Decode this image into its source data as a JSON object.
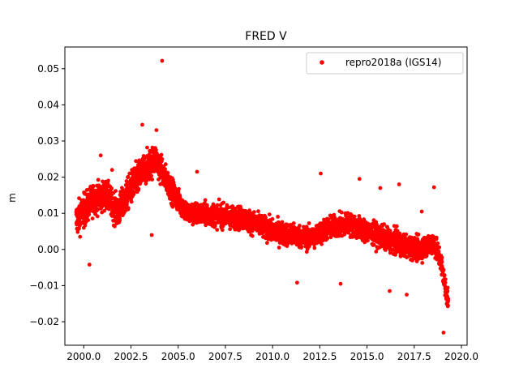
{
  "chart_data": {
    "type": "scatter",
    "title": "FRED V",
    "xlabel": "",
    "ylabel": "m",
    "xlim": [
      1999.0,
      2020.3
    ],
    "ylim": [
      -0.0265,
      0.056
    ],
    "xticks": [
      2000.0,
      2002.5,
      2005.0,
      2007.5,
      2010.0,
      2012.5,
      2015.0,
      2017.5,
      2020.0
    ],
    "xtick_labels": [
      "2000.0",
      "2002.5",
      "2005.0",
      "2007.5",
      "2010.0",
      "2012.5",
      "2015.0",
      "2017.5",
      "2020.0"
    ],
    "yticks": [
      -0.02,
      -0.01,
      0.0,
      0.01,
      0.02,
      0.03,
      0.04,
      0.05
    ],
    "ytick_labels": [
      "−0.02",
      "−0.01",
      "0.00",
      "0.01",
      "0.02",
      "0.03",
      "0.04",
      "0.05"
    ],
    "legend": {
      "placement": "top-right",
      "entries": [
        "repro2018a (IGS14)"
      ]
    },
    "grid": false,
    "series": [
      {
        "name": "repro2018a (IGS14)",
        "color": "#ff0000",
        "marker": "circle",
        "trend": [
          [
            1999.6,
            0.008
          ],
          [
            2000.5,
            0.014
          ],
          [
            2001.2,
            0.015
          ],
          [
            2001.8,
            0.01
          ],
          [
            2002.5,
            0.017
          ],
          [
            2003.2,
            0.022
          ],
          [
            2003.8,
            0.025
          ],
          [
            2004.3,
            0.02
          ],
          [
            2004.8,
            0.015
          ],
          [
            2005.5,
            0.01
          ],
          [
            2007.0,
            0.0095
          ],
          [
            2008.5,
            0.0085
          ],
          [
            2010.0,
            0.005
          ],
          [
            2011.0,
            0.004
          ],
          [
            2012.0,
            0.003
          ],
          [
            2013.0,
            0.006
          ],
          [
            2014.0,
            0.007
          ],
          [
            2015.0,
            0.005
          ],
          [
            2016.0,
            0.003
          ],
          [
            2017.0,
            0.001
          ],
          [
            2017.8,
            0.0
          ],
          [
            2018.5,
            0.002
          ],
          [
            2018.9,
            -0.003
          ],
          [
            2019.2,
            -0.012
          ],
          [
            2019.3,
            -0.014
          ]
        ],
        "spread": [
          [
            1999.6,
            0.006
          ],
          [
            2001.0,
            0.005
          ],
          [
            2003.0,
            0.006
          ],
          [
            2004.0,
            0.005
          ],
          [
            2005.0,
            0.004
          ],
          [
            2010.0,
            0.004
          ],
          [
            2015.0,
            0.004
          ],
          [
            2019.3,
            0.004
          ]
        ],
        "extra_points": [
          [
            2004.15,
            0.0522
          ],
          [
            2003.1,
            0.0345
          ],
          [
            2003.85,
            0.033
          ],
          [
            2001.5,
            0.022
          ],
          [
            2000.9,
            0.026
          ],
          [
            2006.0,
            0.0215
          ],
          [
            2012.55,
            0.021
          ],
          [
            2014.6,
            0.0195
          ],
          [
            2018.55,
            0.0172
          ],
          [
            2019.05,
            -0.023
          ],
          [
            2000.3,
            -0.0042
          ],
          [
            2011.3,
            -0.0092
          ],
          [
            2013.6,
            -0.0095
          ],
          [
            2016.2,
            -0.0115
          ],
          [
            2017.1,
            -0.0125
          ],
          [
            2003.6,
            0.004
          ],
          [
            2016.7,
            0.018
          ],
          [
            2015.7,
            0.017
          ],
          [
            2017.9,
            0.0105
          ]
        ]
      }
    ]
  }
}
